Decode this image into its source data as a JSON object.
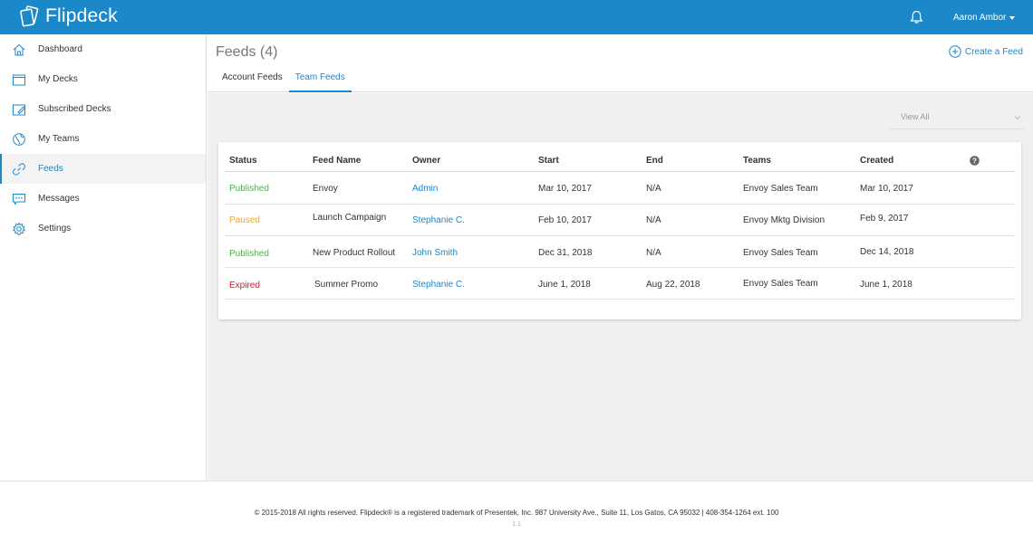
{
  "app": {
    "name": "Flipdeck"
  },
  "topbar": {
    "user_name": "Aaron Ambor"
  },
  "sidebar": {
    "items": [
      {
        "label": "Dashboard",
        "icon": "home-icon"
      },
      {
        "label": "My Decks",
        "icon": "deck-icon"
      },
      {
        "label": "Subscribed Decks",
        "icon": "subscribed-deck-icon"
      },
      {
        "label": "My Teams",
        "icon": "globe-icon"
      },
      {
        "label": "Feeds",
        "icon": "link-icon",
        "active": true
      },
      {
        "label": "Messages",
        "icon": "message-icon"
      },
      {
        "label": "Settings",
        "icon": "gear-icon"
      }
    ]
  },
  "main": {
    "title": "Feeds (4)",
    "create_label": "Create a Feed",
    "tabs": [
      {
        "label": "Account Feeds",
        "active": false
      },
      {
        "label": "Team Feeds",
        "active": true
      }
    ],
    "filter": {
      "selected": "View All"
    }
  },
  "table": {
    "columns": [
      "Status",
      "Feed Name",
      "Owner",
      "Start",
      "End",
      "Teams",
      "Created"
    ],
    "rows": [
      {
        "status": "Published",
        "status_color": "#4caf50",
        "feed_name": "Envoy",
        "owner": "Admin",
        "start": "Mar 10, 2017",
        "end": "N/A",
        "teams": "Envoy Sales Team",
        "created": "Mar 10, 2017"
      },
      {
        "status": "Paused",
        "status_color": "#f5a623",
        "feed_name": "Launch Campaign",
        "owner": "Stephanie C.",
        "start": "Feb 10, 2017",
        "end": "N/A",
        "teams": "Envoy Mktg Division",
        "created": "Feb 9, 2017"
      },
      {
        "status": "Published",
        "status_color": "#4caf50",
        "feed_name": "New Product Rollout",
        "owner": "John Smith",
        "start": "Dec 31, 2018",
        "end": "N/A",
        "teams": "Envoy Sales Team",
        "created": "Dec 14, 2018"
      },
      {
        "status": "Expired",
        "status_color": "#e0141e",
        "feed_name": "Summer Promo",
        "owner": "Stephanie C.",
        "start": "June 1, 2018",
        "end": "Aug 22, 2018",
        "teams": "Envoy Sales Team",
        "created": "June 1, 2018"
      }
    ]
  },
  "footer": {
    "copyright": "© 2015-2018 All rights reserved. Flipdeck® is a registered trademark of Presentek, Inc. 987 University Ave., Suite 11, Los Gatos, CA  95032 | 408-354-1264 ext. 100",
    "version": "1.1"
  },
  "colors": {
    "primary": "#1b88c9",
    "published": "#4caf50",
    "paused": "#f5a623",
    "expired": "#e0141e"
  }
}
